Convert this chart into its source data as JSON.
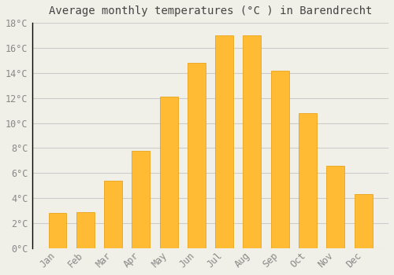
{
  "title": "Average monthly temperatures (°C ) in Barendrecht",
  "months": [
    "Jan",
    "Feb",
    "Mar",
    "Apr",
    "May",
    "Jun",
    "Jul",
    "Aug",
    "Sep",
    "Oct",
    "Nov",
    "Dec"
  ],
  "values": [
    2.8,
    2.9,
    5.4,
    7.8,
    12.1,
    14.8,
    17.0,
    17.0,
    14.2,
    10.8,
    6.6,
    4.3
  ],
  "bar_color": "#FFBB33",
  "bar_edge_color": "#E89A00",
  "background_color": "#F0F0E8",
  "grid_color": "#CCCCCC",
  "text_color": "#888888",
  "title_color": "#444444",
  "ylim": [
    0,
    18
  ],
  "ytick_step": 2,
  "title_fontsize": 10,
  "tick_fontsize": 8.5,
  "bar_width": 0.65
}
